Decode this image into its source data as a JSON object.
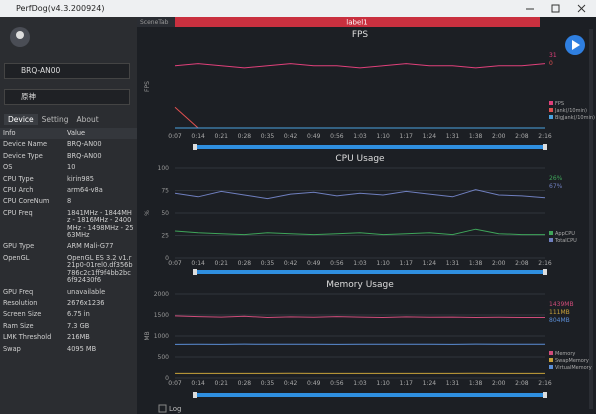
{
  "window": {
    "title": "PerfDog(v4.3.200924)"
  },
  "sidebar": {
    "device": "BRQ-AN00",
    "app": "原神",
    "tabs": [
      "Device",
      "Setting",
      "About"
    ],
    "table": {
      "header": [
        "Info",
        "Value"
      ],
      "rows": [
        [
          "Device Name",
          "BRQ-AN00"
        ],
        [
          "Device Type",
          "BRQ-AN00"
        ],
        [
          "OS",
          "10"
        ],
        [
          "CPU Type",
          "kirin985"
        ],
        [
          "CPU Arch",
          "arm64-v8a"
        ],
        [
          "CPU CoreNum",
          "8"
        ],
        [
          "CPU Freq",
          "1841MHz - 1844MHz - 1816MHz - 2400MHz - 1498MHz - 2563MHz"
        ],
        [
          "GPU Type",
          "ARM Mali-G77"
        ],
        [
          "OpenGL",
          "OpenGL ES 3.2 v1.r21p0-01rel0.df356b786c2c1ff9f4bb2bc6f92430f6"
        ],
        [
          "GPU Freq",
          "unavailable"
        ],
        [
          "Resolution",
          "2676x1236"
        ],
        [
          "Screen Size",
          "6.75 in"
        ],
        [
          "Ram Size",
          "7.3 GB"
        ],
        [
          "LMK Threshold",
          "216MB"
        ],
        [
          "Swap",
          "4095 MB"
        ]
      ]
    }
  },
  "scene": {
    "tab": "SceneTab",
    "label": "label1"
  },
  "log": "Log",
  "chart_data": [
    {
      "type": "line",
      "title": "FPS",
      "y_label": "FPS",
      "ylim": [
        0,
        40
      ],
      "categories": [
        "0:07",
        "0:14",
        "0:21",
        "0:28",
        "0:35",
        "0:42",
        "0:49",
        "0:56",
        "1:03",
        "1:10",
        "1:17",
        "1:24",
        "1:31",
        "1:38",
        "2:00",
        "2:08",
        "2:16"
      ],
      "series": [
        {
          "name": "FPS",
          "color": "#e0407a",
          "current": "31",
          "values": [
            30,
            31,
            30,
            29,
            30,
            31,
            30,
            30,
            29,
            30,
            31,
            30,
            30,
            29,
            30,
            30,
            31
          ]
        },
        {
          "name": "Jank(/10min)",
          "color": "#e05050",
          "current": "0",
          "values": [
            10,
            0,
            0,
            0,
            0,
            0,
            0,
            0,
            0,
            0,
            0,
            0,
            0,
            0,
            0,
            0,
            0
          ]
        },
        {
          "name": "BigJank(/10min)",
          "color": "#4aa3df",
          "values": [
            0,
            0,
            0,
            0,
            0,
            0,
            0,
            0,
            0,
            0,
            0,
            0,
            0,
            0,
            0,
            0,
            0
          ]
        }
      ]
    },
    {
      "type": "line",
      "title": "CPU Usage",
      "y_label": "%",
      "ylim": [
        0,
        100
      ],
      "yticks": [
        0,
        25,
        50,
        75,
        100
      ],
      "categories": [
        "0:07",
        "0:14",
        "0:21",
        "0:28",
        "0:35",
        "0:42",
        "0:49",
        "0:56",
        "1:03",
        "1:10",
        "1:17",
        "1:24",
        "1:31",
        "1:38",
        "2:00",
        "2:08",
        "2:16"
      ],
      "series": [
        {
          "name": "AppCPU",
          "color": "#3fa55a",
          "current": "26%",
          "values": [
            30,
            28,
            27,
            26,
            28,
            27,
            26,
            27,
            28,
            26,
            27,
            28,
            26,
            32,
            27,
            26,
            26
          ]
        },
        {
          "name": "TotalCPU",
          "color": "#6f7fbf",
          "current": "67%",
          "values": [
            72,
            68,
            74,
            70,
            66,
            71,
            73,
            69,
            72,
            70,
            74,
            71,
            68,
            76,
            70,
            69,
            67
          ]
        }
      ]
    },
    {
      "type": "line",
      "title": "Memory Usage",
      "y_label": "MB",
      "ylim": [
        0,
        2000
      ],
      "yticks": [
        0,
        500,
        1000,
        1500,
        2000
      ],
      "categories": [
        "0:07",
        "0:14",
        "0:21",
        "0:28",
        "0:35",
        "0:42",
        "0:49",
        "0:56",
        "1:03",
        "1:10",
        "1:17",
        "1:24",
        "1:31",
        "1:38",
        "2:00",
        "2:08",
        "2:16"
      ],
      "series": [
        {
          "name": "Memory",
          "color": "#d04c7a",
          "current": "1439MB",
          "values": [
            1480,
            1460,
            1450,
            1470,
            1440,
            1455,
            1445,
            1460,
            1450,
            1440,
            1455,
            1445,
            1450,
            1440,
            1445,
            1440,
            1439
          ]
        },
        {
          "name": "SwapMemory",
          "color": "#c8a23a",
          "current": "111MB",
          "values": [
            110,
            111,
            111,
            110,
            111,
            112,
            111,
            110,
            111,
            111,
            110,
            111,
            111,
            112,
            111,
            111,
            111
          ]
        },
        {
          "name": "VirtualMemory",
          "color": "#5b8ed6",
          "current": "804MB",
          "values": [
            800,
            805,
            802,
            806,
            803,
            804,
            805,
            802,
            804,
            803,
            805,
            804,
            802,
            806,
            804,
            803,
            804
          ]
        }
      ]
    }
  ]
}
